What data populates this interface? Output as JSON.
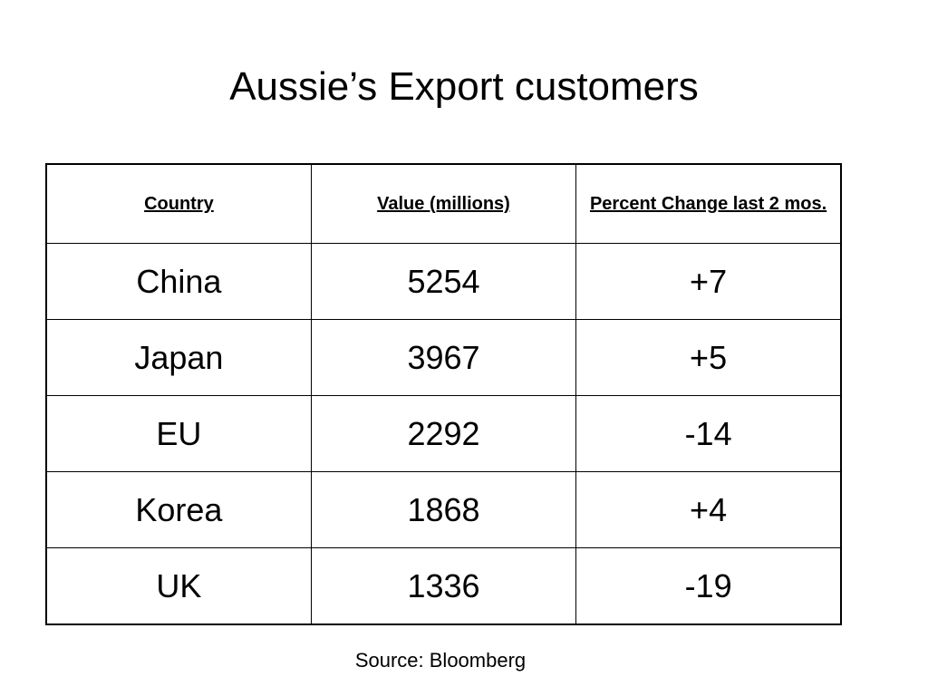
{
  "header": {
    "title": "Aussie’s Export customers"
  },
  "table": {
    "columns": [
      "Country",
      "Value (millions)",
      "Percent Change last 2 mos."
    ],
    "rows": [
      [
        "China",
        5254,
        "+7"
      ],
      [
        "Japan",
        3967,
        "+5"
      ],
      [
        "EU",
        2292,
        -14
      ],
      [
        "Korea",
        1868,
        "+4"
      ],
      [
        "UK",
        1336,
        -19
      ]
    ]
  },
  "footer": {
    "source": "Source: Bloomberg"
  }
}
